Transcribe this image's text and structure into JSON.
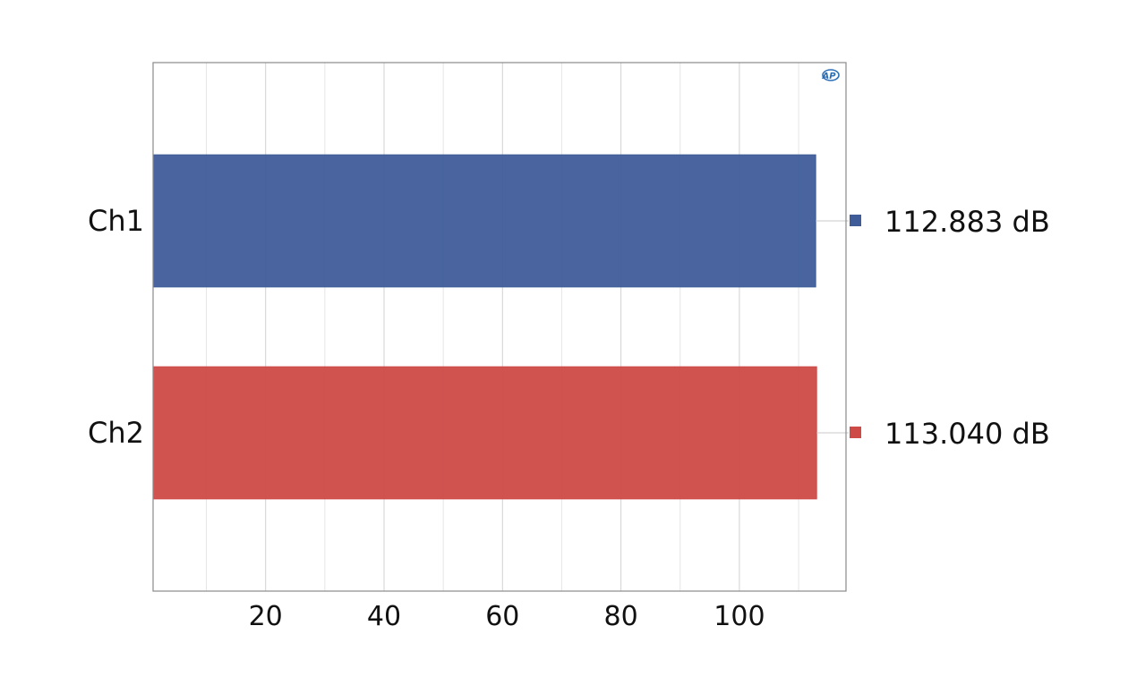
{
  "chart_data": {
    "type": "bar",
    "orientation": "horizontal",
    "categories": [
      "Ch1",
      "Ch2"
    ],
    "values": [
      112.883,
      113.04
    ],
    "value_labels": [
      "112.883 dB",
      "113.040 dB"
    ],
    "unit": "dB",
    "colors": [
      "#3f5c99",
      "#cd4a47"
    ],
    "xlim": [
      1,
      118
    ],
    "xticks": [
      20,
      40,
      60,
      80,
      100
    ],
    "xtick_labels": [
      "20",
      "40",
      "60",
      "80",
      "100"
    ],
    "title": "",
    "xlabel": "",
    "ylabel": "",
    "grid": true,
    "legend_placement": "right"
  },
  "logo": {
    "text": "AP",
    "color": "#2a6db5"
  }
}
